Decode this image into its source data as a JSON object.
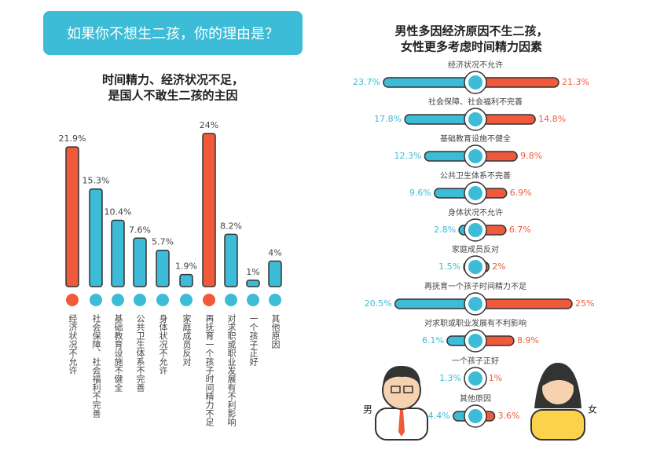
{
  "chart_data": [
    {
      "type": "bar",
      "title": "如果你不想生二孩，你的理由是？",
      "subtitle": [
        "时间精力、经济状况不足，",
        "是国人不敢生二孩的主因"
      ],
      "categories": [
        "经济状况不允许",
        "社会保障、社会福利不完善",
        "基础教育设施不健全",
        "公共卫生体系不完善",
        "身体状况不允许",
        "家庭成员反对",
        "再抚育一个孩子时间精力不足",
        "对求职或职业发展有不利影响",
        "一个孩子正好",
        "其他原因"
      ],
      "values": [
        21.9,
        15.3,
        10.4,
        7.6,
        5.7,
        1.9,
        24,
        8.2,
        1,
        4
      ],
      "value_labels": [
        "21.9%",
        "15.3%",
        "10.4%",
        "7.6%",
        "5.7%",
        "1.9%",
        "24%",
        "8.2%",
        "1%",
        "4%"
      ],
      "colors": [
        "#f05a3a",
        "#3cbcd6",
        "#3cbcd6",
        "#3cbcd6",
        "#3cbcd6",
        "#3cbcd6",
        "#f05a3a",
        "#3cbcd6",
        "#3cbcd6",
        "#3cbcd6"
      ]
    },
    {
      "type": "butterfly",
      "title": [
        "男性多因经济原因不生二孩，",
        "女性更多考虑时间精力因素"
      ],
      "categories": [
        "经济状况不允许",
        "社会保障、社会福利不完善",
        "基础教育设施不健全",
        "公共卫生体系不完善",
        "身体状况不允许",
        "家庭成员反对",
        "再抚育一个孩子时间精力不足",
        "对求职或职业发展有不利影响",
        "一个孩子正好",
        "其他原因"
      ],
      "series": [
        {
          "name": "男",
          "color": "#3cbcd6",
          "values": [
            23.7,
            17.8,
            12.3,
            9.6,
            2.8,
            1.5,
            20.5,
            6.1,
            1.3,
            4.4
          ],
          "value_labels": [
            "23.7%",
            "17.8%",
            "12.3%",
            "9.6%",
            "2.8%",
            "1.5%",
            "20.5%",
            "6.1%",
            "1.3%",
            "4.4%"
          ]
        },
        {
          "name": "女",
          "color": "#f05a3a",
          "values": [
            21.3,
            14.8,
            9.8,
            6.9,
            6.7,
            2,
            25,
            8.9,
            1,
            3.6
          ],
          "value_labels": [
            "21.3%",
            "14.8%",
            "9.8%",
            "6.9%",
            "6.7%",
            "2%",
            "25%",
            "8.9%",
            "1%",
            "3.6%"
          ]
        }
      ]
    }
  ]
}
